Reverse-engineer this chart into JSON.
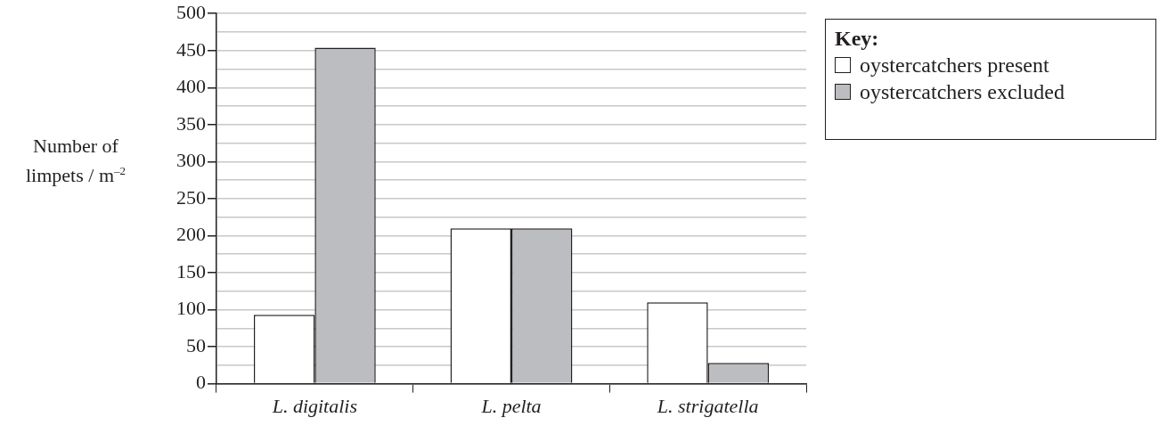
{
  "chart_data": {
    "type": "bar",
    "ylabel": "Number of limpets / m$^{–2}$",
    "legend_title": "Key:",
    "categories": [
      "L. digitalis",
      "L. pelta",
      "L. strigatella"
    ],
    "series": [
      {
        "name": "oystercatchers present",
        "color": "#ffffff",
        "values": [
          93,
          210,
          110
        ]
      },
      {
        "name": "oystercatchers excluded",
        "color": "#bcbdc0",
        "values": [
          454,
          210,
          28
        ]
      }
    ],
    "ylim": [
      0,
      500
    ],
    "yticks": [
      0,
      {
        "value": 25,
        "label": null
      },
      50,
      {
        "value": 75,
        "label": null
      },
      100,
      {
        "value": 125,
        "label": null
      },
      150,
      {
        "value": 175,
        "label": null
      },
      200,
      {
        "value": 225,
        "label": null
      },
      250,
      {
        "value": 275,
        "label": null
      },
      300,
      {
        "value": 325,
        "label": null
      },
      350,
      {
        "value": 375,
        "label": null
      },
      400,
      {
        "value": 425,
        "label": null
      },
      450,
      {
        "value": 475,
        "label": null
      },
      500
    ],
    "grid": "y",
    "legend": "top right"
  }
}
